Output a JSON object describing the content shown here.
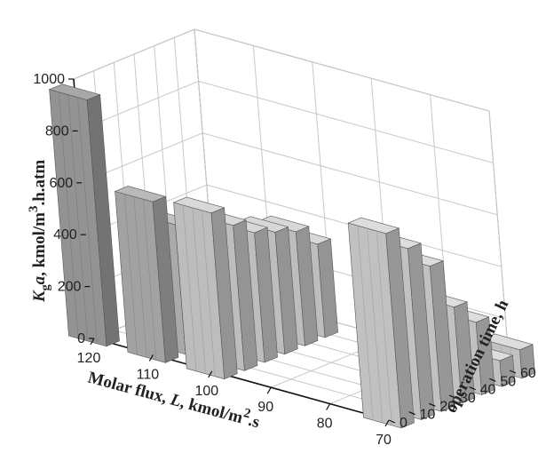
{
  "chart_data": {
    "type": "bar3d",
    "title": "",
    "xlabel": "Molar flux, L, kmol/m^2.s",
    "xlabel_parts": [
      "Molar flux, ",
      "L",
      ", kmol/m",
      "2",
      ".s"
    ],
    "ylabel": "operation time, h",
    "zlabel": "Kga, kmol/m^3.h.atm",
    "zlabel_parts": [
      "K",
      "g",
      "a",
      ", kmol/m",
      "3",
      ".h.atm"
    ],
    "x_ticks": [
      "120",
      "110",
      "100",
      "90",
      "80",
      "70"
    ],
    "y_ticks": [
      "0",
      "10",
      "20",
      "30",
      "40",
      "50",
      "60"
    ],
    "z_ticks": [
      "0",
      "200",
      "400",
      "600",
      "800",
      "1000"
    ],
    "zlim": [
      0,
      1000
    ],
    "grid": true,
    "series": [
      {
        "flux": 120,
        "color": "#8c8c8c",
        "points": [
          {
            "t": 0,
            "kga": 950
          }
        ]
      },
      {
        "flux": 110,
        "color": "#9a9a9a",
        "points": [
          {
            "t": 0,
            "kga": 620
          }
        ]
      },
      {
        "flux": 110,
        "color": "#a2a2a2",
        "points": [
          {
            "t": 10,
            "kga": 500
          }
        ]
      },
      {
        "flux": 100,
        "color": "#b4b4b4",
        "points": [
          {
            "t": 0,
            "kga": 640
          },
          {
            "t": 10,
            "kga": 560
          },
          {
            "t": 20,
            "kga": 500
          },
          {
            "t": 30,
            "kga": 470
          },
          {
            "t": 40,
            "kga": 440
          },
          {
            "t": 50,
            "kga": 360
          }
        ]
      },
      {
        "flux": 70,
        "color": "#b8b8b8",
        "points": [
          {
            "t": 0,
            "kga": 750
          },
          {
            "t": 10,
            "kga": 660
          },
          {
            "t": 20,
            "kga": 560
          },
          {
            "t": 30,
            "kga": 370
          },
          {
            "t": 40,
            "kga": 280
          },
          {
            "t": 50,
            "kga": 100
          },
          {
            "t": 60,
            "kga": 110
          }
        ]
      }
    ]
  }
}
